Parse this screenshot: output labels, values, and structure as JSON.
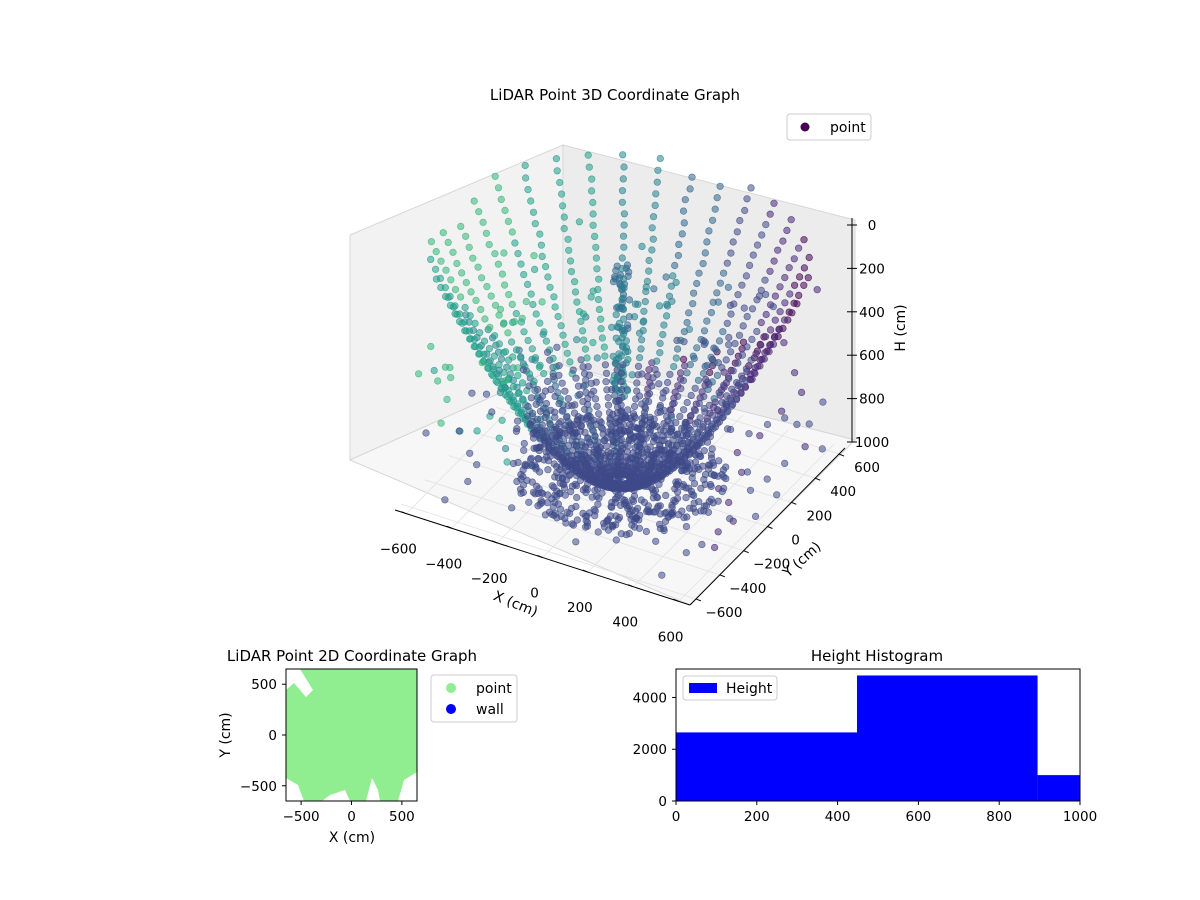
{
  "colors": {
    "point_cmap": [
      "#440154",
      "#482878",
      "#3e4a89",
      "#31688e",
      "#26828e",
      "#1f9e89",
      "#35b779",
      "#6ece58",
      "#b5de2b"
    ],
    "green": "#90ee90",
    "blue": "#0000ff"
  },
  "chart_data": [
    {
      "type": "scatter",
      "title": "LiDAR Point 3D Coordinate Graph",
      "xlabel": "X (cm)",
      "ylabel": "Y (cm)",
      "zlabel": "H (cm)",
      "x_ticks": [
        "−600",
        "−400",
        "−200",
        "0",
        "200",
        "400",
        "600"
      ],
      "y_ticks": [
        "−600",
        "−400",
        "−200",
        "0",
        "200",
        "400",
        "600"
      ],
      "z_ticks": [
        "0",
        "200",
        "400",
        "600",
        "800",
        "1000"
      ],
      "xlim": [
        -650,
        650
      ],
      "ylim": [
        -650,
        650
      ],
      "zlim": [
        0,
        1000
      ],
      "z_inverted": true,
      "legend": {
        "label": "point",
        "placement": "top-right"
      },
      "description_series": "dense dome-shaped point cloud of concentric scan rings around the origin, colored by height with a viridis-like colormap"
    },
    {
      "type": "scatter",
      "title": "LiDAR Point 2D Coordinate Graph",
      "xlabel": "X (cm)",
      "ylabel": "Y (cm)",
      "x_ticks": [
        "−500",
        "0",
        "500"
      ],
      "y_ticks": [
        "500",
        "0",
        "−500"
      ],
      "xlim": [
        -650,
        650
      ],
      "ylim": [
        -650,
        650
      ],
      "legend": {
        "entries": [
          "point",
          "wall"
        ],
        "placement": "outside-right"
      }
    },
    {
      "type": "bar",
      "title": "Height Histogram",
      "legend": {
        "label": "Height",
        "placement": "top-left"
      },
      "x_ticks": [
        "0",
        "200",
        "400",
        "600",
        "800",
        "1000"
      ],
      "y_ticks": [
        "0",
        "2000",
        "4000"
      ],
      "xlim": [
        0,
        1000
      ],
      "ylim": [
        0,
        5100
      ],
      "bins": [
        {
          "start": 0,
          "end": 448,
          "count": 2650
        },
        {
          "start": 448,
          "end": 895,
          "count": 4850
        },
        {
          "start": 895,
          "end": 1000,
          "count": 1000
        }
      ]
    }
  ]
}
